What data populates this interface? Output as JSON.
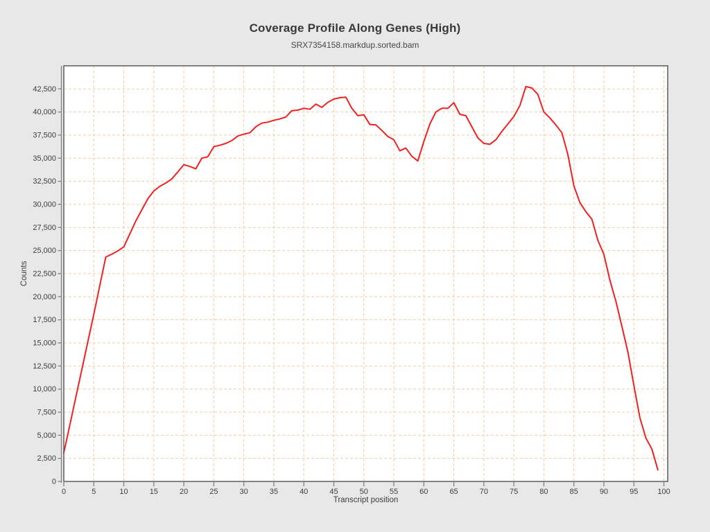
{
  "page": {
    "background": "#e8e8e8"
  },
  "chart_data": {
    "type": "line",
    "title": "Coverage Profile Along Genes (High)",
    "subtitle": "SRX7354158.markdup.sorted.bam",
    "xlabel": "Transcript position",
    "ylabel": "Counts",
    "x_ticks": [
      0,
      5,
      10,
      15,
      20,
      25,
      30,
      35,
      40,
      45,
      50,
      55,
      60,
      65,
      70,
      75,
      80,
      85,
      90,
      95,
      100
    ],
    "y_ticks": [
      0,
      2500,
      5000,
      7500,
      10000,
      12500,
      15000,
      17500,
      20000,
      22500,
      25000,
      27500,
      30000,
      32500,
      35000,
      37500,
      40000,
      42500
    ],
    "xlim": [
      0,
      100.6
    ],
    "ylim": [
      0,
      45000
    ],
    "grid": {
      "style": "dashed",
      "color": "#f4cba6"
    },
    "axis_color": "#808080",
    "border_color": "#5c5c5c",
    "text_color": "#3c3c3c",
    "plot_background": "#ffffff",
    "series": [
      {
        "name": "SRX7354158.markdup.sorted.bam",
        "color": "#f02020",
        "x": [
          0,
          1,
          2,
          3,
          4,
          5,
          6,
          7,
          8,
          9,
          10,
          11,
          12,
          13,
          14,
          15,
          16,
          17,
          18,
          19,
          20,
          21,
          22,
          23,
          24,
          25,
          26,
          27,
          28,
          29,
          30,
          31,
          32,
          33,
          34,
          35,
          36,
          37,
          38,
          39,
          40,
          41,
          42,
          43,
          44,
          45,
          46,
          47,
          48,
          49,
          50,
          51,
          52,
          53,
          54,
          55,
          56,
          57,
          58,
          59,
          60,
          61,
          62,
          63,
          64,
          65,
          66,
          67,
          68,
          69,
          70,
          71,
          72,
          73,
          74,
          75,
          76,
          77,
          78,
          79,
          80,
          81,
          82,
          83,
          84,
          85,
          86,
          87,
          88,
          89,
          90,
          91,
          92,
          93,
          94,
          95,
          96,
          97,
          98,
          99
        ],
        "values": [
          3100,
          6100,
          9100,
          12100,
          15100,
          18100,
          21200,
          24300,
          24600,
          24950,
          25400,
          26800,
          28200,
          29400,
          30600,
          31450,
          31950,
          32300,
          32750,
          33500,
          34300,
          34100,
          33850,
          35000,
          35150,
          36250,
          36400,
          36600,
          36900,
          37400,
          37600,
          37750,
          38400,
          38800,
          38900,
          39100,
          39250,
          39450,
          40150,
          40200,
          40400,
          40300,
          40850,
          40500,
          41050,
          41400,
          41550,
          41600,
          40400,
          39600,
          39700,
          38650,
          38600,
          38000,
          37350,
          37000,
          35800,
          36100,
          35200,
          34700,
          36800,
          38700,
          40000,
          40400,
          40400,
          41000,
          39750,
          39600,
          38400,
          37200,
          36600,
          36500,
          37000,
          37900,
          38700,
          39500,
          40700,
          42750,
          42600,
          41900,
          40000,
          39350,
          38600,
          37750,
          35400,
          32000,
          30200,
          29200,
          28400,
          26100,
          24600,
          21800,
          19500,
          16800,
          14000,
          10400,
          6900,
          4700,
          3500,
          1250
        ]
      }
    ]
  }
}
